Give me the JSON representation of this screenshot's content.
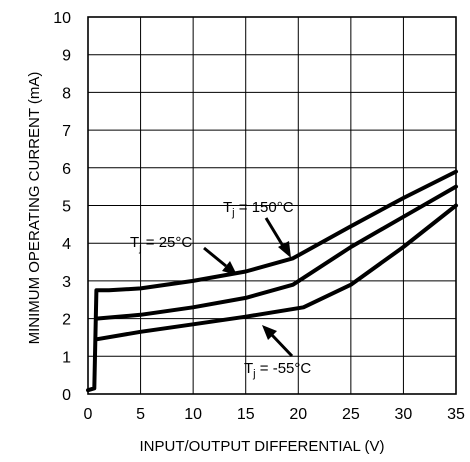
{
  "chart_data": {
    "type": "line",
    "xlabel": "INPUT/OUTPUT DIFFERENTIAL (V)",
    "ylabel": "MINIMUM OPERATING CURRENT (mA)",
    "xlim": [
      0,
      35
    ],
    "ylim": [
      0,
      10
    ],
    "x_ticks": [
      "0",
      "5",
      "10",
      "15",
      "20",
      "25",
      "30",
      "35"
    ],
    "y_ticks": [
      "0",
      "1",
      "2",
      "3",
      "4",
      "5",
      "6",
      "7",
      "8",
      "9",
      "10"
    ],
    "grid": true,
    "series": [
      {
        "name": "Tj = 150°C",
        "points": [
          [
            0,
            0.1
          ],
          [
            0.6,
            0.15
          ],
          [
            0.8,
            2.75
          ],
          [
            2,
            2.75
          ],
          [
            5,
            2.8
          ],
          [
            10,
            3.0
          ],
          [
            15,
            3.25
          ],
          [
            19.5,
            3.6
          ],
          [
            25,
            4.45
          ],
          [
            30,
            5.2
          ],
          [
            35,
            5.9
          ]
        ]
      },
      {
        "name": "Tj = 25°C",
        "points": [
          [
            0.8,
            2.0
          ],
          [
            5,
            2.1
          ],
          [
            10,
            2.3
          ],
          [
            15,
            2.55
          ],
          [
            19.5,
            2.9
          ],
          [
            25,
            3.9
          ],
          [
            30,
            4.7
          ],
          [
            35,
            5.5
          ]
        ]
      },
      {
        "name": "Tj = -55°C",
        "points": [
          [
            0.8,
            1.45
          ],
          [
            5,
            1.65
          ],
          [
            10,
            1.85
          ],
          [
            15,
            2.05
          ],
          [
            20.5,
            2.3
          ],
          [
            25,
            2.9
          ],
          [
            30,
            3.9
          ],
          [
            35,
            5.0
          ]
        ]
      }
    ]
  },
  "annotations": {
    "t150": {
      "T": "T",
      "sub": "j",
      "rest": " = 150°C"
    },
    "t25": {
      "T": "T",
      "sub": "j",
      "rest": " = 25°C"
    },
    "tm55": {
      "T": "T",
      "sub": "j",
      "rest": " = -55°C"
    }
  }
}
